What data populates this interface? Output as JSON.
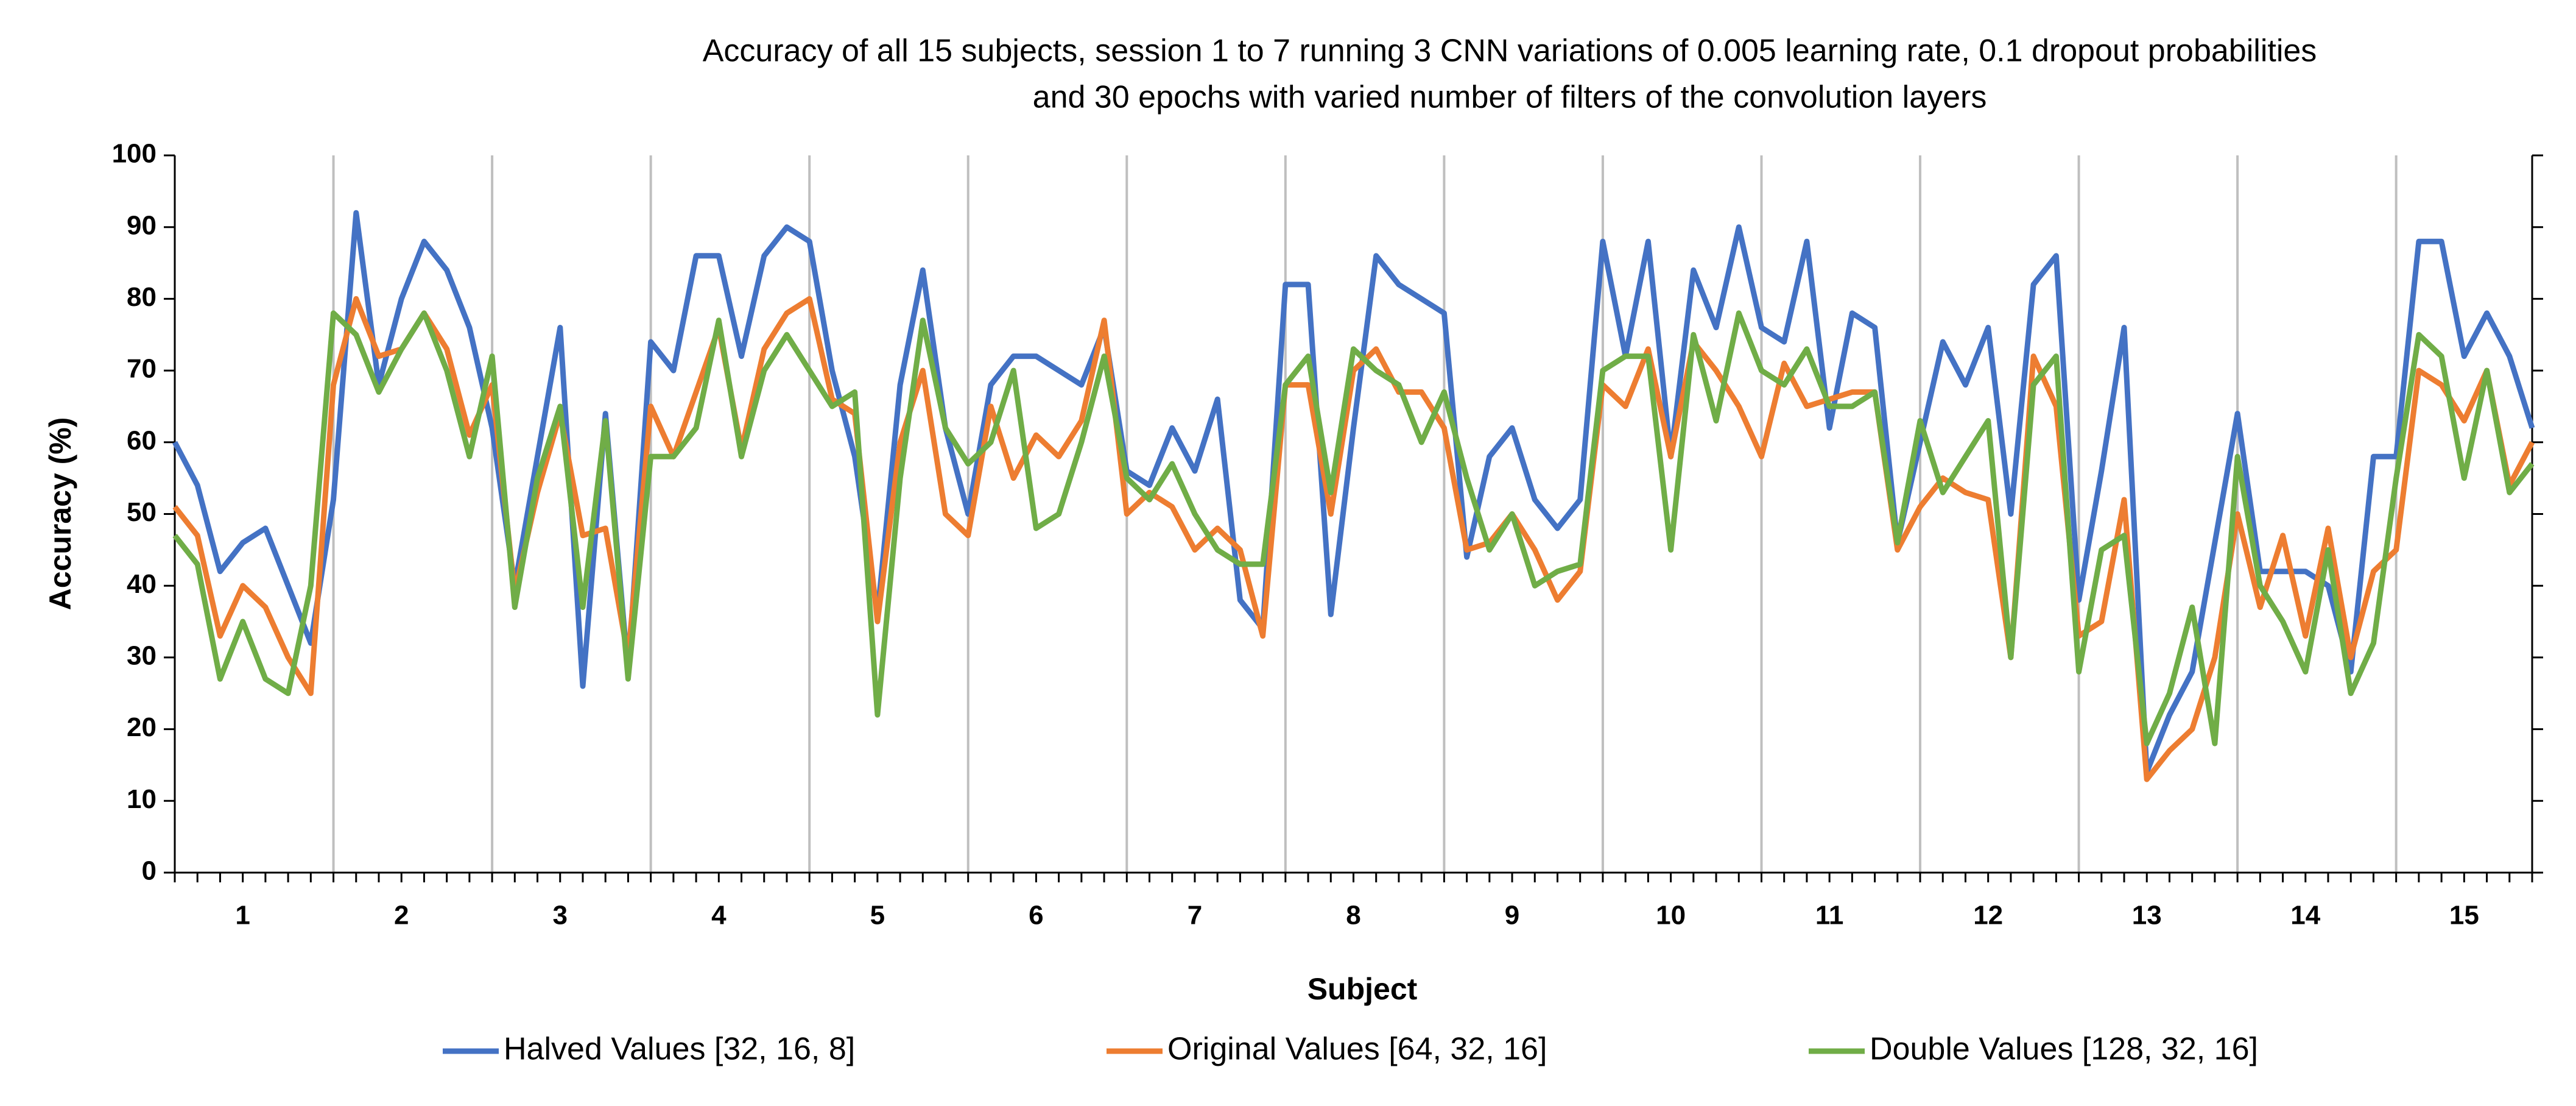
{
  "chart_data": {
    "type": "line",
    "title": [
      "Accuracy of all 15 subjects, session 1 to 7 running 3 CNN variations of 0.005 learning rate, 0.1 dropout probabilities",
      "and 30 epochs with varied number of filters of the convolution layers"
    ],
    "x_label": "Subject",
    "y_label": "Accuracy (%)",
    "categories": [
      null,
      null,
      null,
      "1",
      null,
      null,
      null,
      null,
      null,
      null,
      "2",
      null,
      null,
      null,
      null,
      null,
      null,
      "3",
      null,
      null,
      null,
      null,
      null,
      null,
      "4",
      null,
      null,
      null,
      null,
      null,
      null,
      "5",
      null,
      null,
      null,
      null,
      null,
      null,
      "6",
      null,
      null,
      null,
      null,
      null,
      null,
      "7",
      null,
      null,
      null,
      null,
      null,
      null,
      "8",
      null,
      null,
      null,
      null,
      null,
      null,
      "9",
      null,
      null,
      null,
      null,
      null,
      null,
      "10",
      null,
      null,
      null,
      null,
      null,
      null,
      "11",
      null,
      null,
      null,
      null,
      null,
      null,
      "12",
      null,
      null,
      null,
      null,
      null,
      null,
      "13",
      null,
      null,
      null,
      null,
      null,
      null,
      "14",
      null,
      null,
      null,
      null,
      null,
      null,
      "15",
      null,
      null,
      null
    ],
    "series": [
      {
        "name": "Halved Values [32, 16, 8]",
        "color": "#4472c4",
        "values": [
          60,
          54,
          42,
          46,
          48,
          40,
          32,
          52,
          92,
          68,
          80,
          88,
          84,
          76,
          62,
          40,
          58,
          76,
          26,
          64,
          28,
          74,
          70,
          86,
          86,
          72,
          86,
          90,
          88,
          70,
          58,
          36,
          68,
          84,
          62,
          50,
          68,
          72,
          72,
          70,
          68,
          76,
          56,
          54,
          62,
          56,
          66,
          38,
          34,
          82,
          82,
          36,
          62,
          86,
          82,
          80,
          78,
          44,
          58,
          62,
          52,
          48,
          52,
          88,
          72,
          88,
          58,
          84,
          76,
          90,
          76,
          74,
          88,
          62,
          78,
          76,
          46,
          60,
          74,
          68,
          76,
          50,
          82,
          86,
          38,
          56,
          76,
          14,
          22,
          28,
          46,
          64,
          42,
          42,
          42,
          40,
          28,
          58,
          58,
          88,
          88,
          72,
          78,
          72,
          62
        ]
      },
      {
        "name": "Original Values [64, 32, 16]",
        "color": "#ed7d31",
        "values": [
          51,
          47,
          33,
          40,
          37,
          30,
          25,
          68,
          80,
          72,
          73,
          78,
          73,
          61,
          68,
          39,
          53,
          64,
          47,
          48,
          30,
          65,
          58,
          67,
          76,
          59,
          73,
          78,
          80,
          66,
          64,
          35,
          60,
          70,
          50,
          47,
          65,
          55,
          61,
          58,
          63,
          77,
          50,
          53,
          51,
          45,
          48,
          45,
          33,
          68,
          68,
          50,
          70,
          73,
          67,
          67,
          62,
          45,
          46,
          50,
          45,
          38,
          42,
          68,
          65,
          73,
          58,
          74,
          70,
          65,
          58,
          71,
          65,
          66,
          67,
          67,
          45,
          51,
          55,
          53,
          52,
          30,
          72,
          65,
          33,
          35,
          52,
          13,
          17,
          20,
          30,
          50,
          37,
          47,
          33,
          48,
          30,
          42,
          45,
          70,
          68,
          63,
          70,
          54,
          60
        ]
      },
      {
        "name": "Double Values [128, 32, 16]",
        "color": "#70ad47",
        "values": [
          47,
          43,
          27,
          35,
          27,
          25,
          40,
          78,
          75,
          67,
          73,
          78,
          70,
          58,
          72,
          37,
          55,
          65,
          37,
          63,
          27,
          58,
          58,
          62,
          77,
          58,
          70,
          75,
          70,
          65,
          67,
          22,
          55,
          77,
          62,
          57,
          60,
          70,
          48,
          50,
          60,
          72,
          55,
          52,
          57,
          50,
          45,
          43,
          43,
          68,
          72,
          53,
          73,
          70,
          68,
          60,
          67,
          55,
          45,
          50,
          40,
          42,
          43,
          70,
          72,
          72,
          45,
          75,
          63,
          78,
          70,
          68,
          73,
          65,
          65,
          67,
          46,
          63,
          53,
          58,
          63,
          30,
          68,
          72,
          28,
          45,
          47,
          18,
          25,
          37,
          18,
          58,
          40,
          35,
          28,
          45,
          25,
          32,
          55,
          75,
          72,
          55,
          70,
          53,
          57
        ]
      }
    ],
    "ylim": [
      0,
      100
    ],
    "yticks": [
      0,
      10,
      20,
      30,
      40,
      50,
      60,
      70,
      80,
      90,
      100
    ],
    "legend": "bottom"
  }
}
